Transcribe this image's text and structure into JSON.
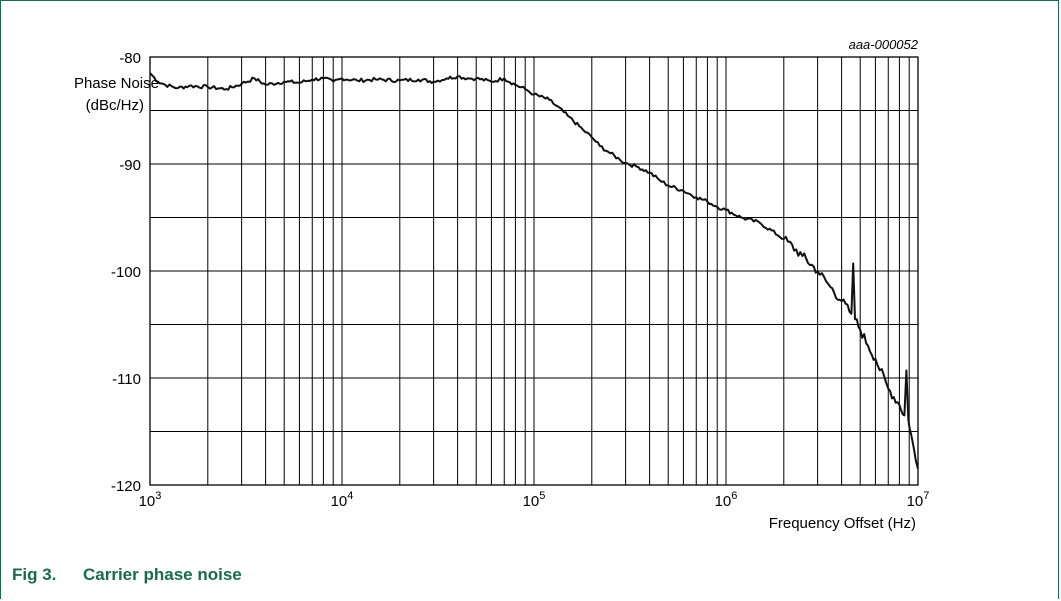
{
  "figure": {
    "number": "Fig 3.",
    "caption": "Carrier phase noise"
  },
  "colors": {
    "frame": "#1a6b4c",
    "caption": "#1a6b4c",
    "grid": "#000000",
    "trace": "#111111"
  },
  "chart_data": {
    "type": "line",
    "title": "",
    "figure_id": "aaa-000052",
    "ylabel_line1": "Phase Noise",
    "ylabel_line2": "(dBc/Hz)",
    "xlabel": "Frequency Offset (Hz)",
    "x_scale": "log",
    "xlim": [
      1000,
      10000000
    ],
    "ylim": [
      -120,
      -80
    ],
    "grid": true,
    "x_ticks": [
      {
        "value": 1000,
        "base": "10",
        "exp": "3"
      },
      {
        "value": 10000,
        "base": "10",
        "exp": "4"
      },
      {
        "value": 100000,
        "base": "10",
        "exp": "5"
      },
      {
        "value": 1000000,
        "base": "10",
        "exp": "6"
      },
      {
        "value": 10000000,
        "base": "10",
        "exp": "7"
      }
    ],
    "y_ticks": [
      {
        "value": -80,
        "label": "-80"
      },
      {
        "value": -90,
        "label": "-90"
      },
      {
        "value": -100,
        "label": "-100"
      },
      {
        "value": -110,
        "label": "-110"
      },
      {
        "value": -120,
        "label": "-120"
      }
    ],
    "series": [
      {
        "x": [
          1000,
          1100,
          1200,
          1400,
          1600,
          2000,
          2500,
          3000,
          3500,
          4000,
          5000,
          6000,
          7000,
          8000,
          9000,
          10000,
          12000,
          15000,
          20000,
          25000,
          30000,
          35000,
          40000,
          45000,
          50000,
          60000,
          70000,
          80000,
          90000,
          100000,
          120000,
          150000,
          180000,
          200000,
          220000,
          250000,
          280000,
          300000,
          350000,
          400000,
          450000,
          500000,
          600000,
          700000,
          800000,
          900000,
          1000000,
          1200000,
          1500000,
          2000000,
          2500000,
          3000000,
          3500000,
          4000000,
          4500000,
          4600000,
          4700000,
          5000000,
          5500000,
          6000000,
          7000000,
          8000000,
          8500000,
          8700000,
          8900000,
          9000000,
          9500000,
          10000000
        ],
        "y": [
          -81.5,
          -82.3,
          -82.6,
          -82.9,
          -82.7,
          -82.8,
          -83.0,
          -82.5,
          -82.0,
          -82.6,
          -82.3,
          -82.4,
          -82.1,
          -82.0,
          -82.3,
          -82.0,
          -82.2,
          -82.1,
          -82.2,
          -82.1,
          -82.3,
          -82.0,
          -81.8,
          -82.0,
          -82.0,
          -82.3,
          -82.0,
          -82.6,
          -83.0,
          -83.5,
          -84.0,
          -85.5,
          -86.8,
          -87.5,
          -88.3,
          -89.0,
          -89.6,
          -89.9,
          -90.3,
          -90.8,
          -91.5,
          -92.0,
          -92.5,
          -93.1,
          -93.5,
          -94.0,
          -94.3,
          -95.0,
          -95.5,
          -97.0,
          -98.6,
          -100.0,
          -101.5,
          -102.8,
          -104.0,
          -99.3,
          -104.5,
          -105.5,
          -107.0,
          -108.2,
          -111.0,
          -112.5,
          -113.5,
          -109.3,
          -113.8,
          -114.5,
          -116.5,
          -118.5
        ]
      }
    ]
  }
}
